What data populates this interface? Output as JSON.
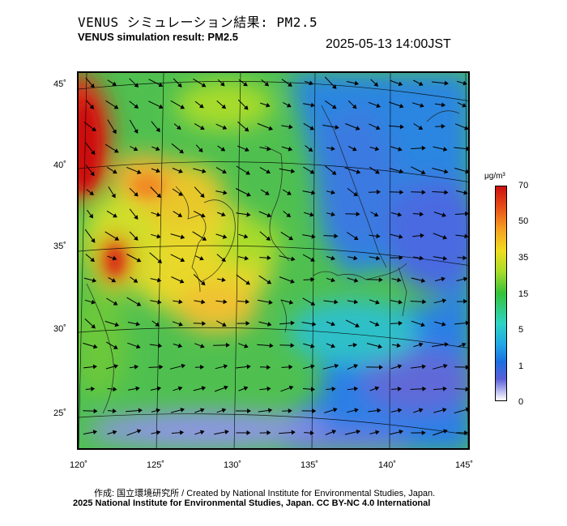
{
  "header": {
    "title_jp": "VENUS シミュレーション結果: PM2.5",
    "title_en": "VENUS simulation result: PM2.5",
    "timestamp": "2025-05-13 14:00JST"
  },
  "map": {
    "lon_ticks": [
      "120˚",
      "125˚",
      "130˚",
      "135˚",
      "140˚",
      "145˚"
    ],
    "lat_ticks": [
      "45˚",
      "40˚",
      "35˚",
      "30˚",
      "25˚"
    ]
  },
  "colorbar": {
    "unit": "μg/m³",
    "ticks": [
      "70",
      "50",
      "35",
      "15",
      "5",
      "1",
      "0"
    ],
    "colors": [
      "#cc1010",
      "#e85018",
      "#f0dc20",
      "#35c23a",
      "#21a6e6",
      "#5a5fd8",
      "#ffffff"
    ]
  },
  "credits": {
    "line1": "作成: 国立環境研究所 / Created by National Institute for Environmental Studies, Japan.",
    "line2": "2025 National Institute for Environmental Studies, Japan. CC BY-NC 4.0 International"
  }
}
